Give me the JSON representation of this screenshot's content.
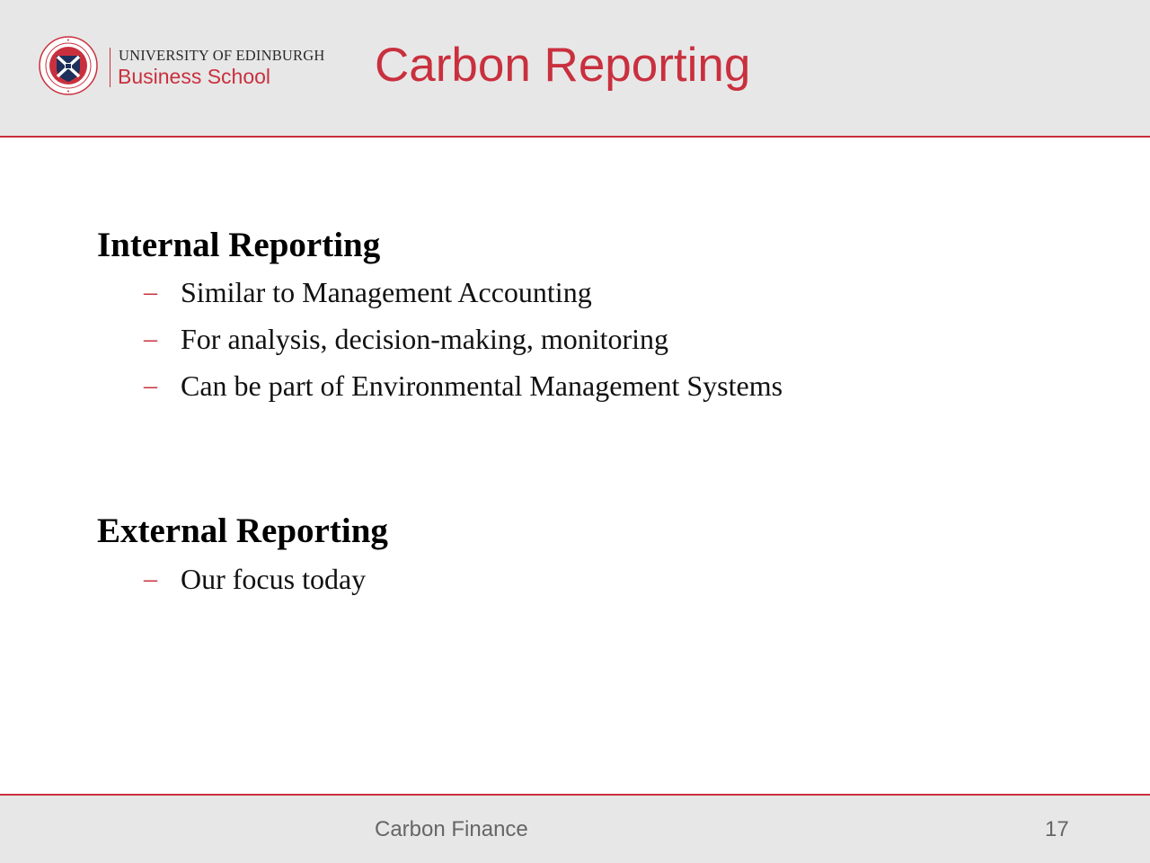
{
  "header": {
    "logo": {
      "university_name": "UNIVERSITY OF EDINBURGH",
      "school_name": "Business School",
      "seal_text": "THE UNIVERSITY OF EDINBURGH"
    },
    "title": "Carbon Reporting"
  },
  "content": {
    "sections": [
      {
        "heading": "Internal Reporting",
        "bullets": [
          "Similar to Management Accounting",
          "For analysis, decision-making, monitoring",
          "Can be part of Environmental Management Systems"
        ]
      },
      {
        "heading": "External Reporting",
        "bullets": [
          "Our focus today"
        ]
      }
    ],
    "bullet_marker": "–"
  },
  "footer": {
    "title": "Carbon Finance",
    "page_number": "17"
  },
  "colors": {
    "accent": "#c9303e",
    "header_bg": "#e7e7e7",
    "seal_navy": "#1d2f5a"
  }
}
